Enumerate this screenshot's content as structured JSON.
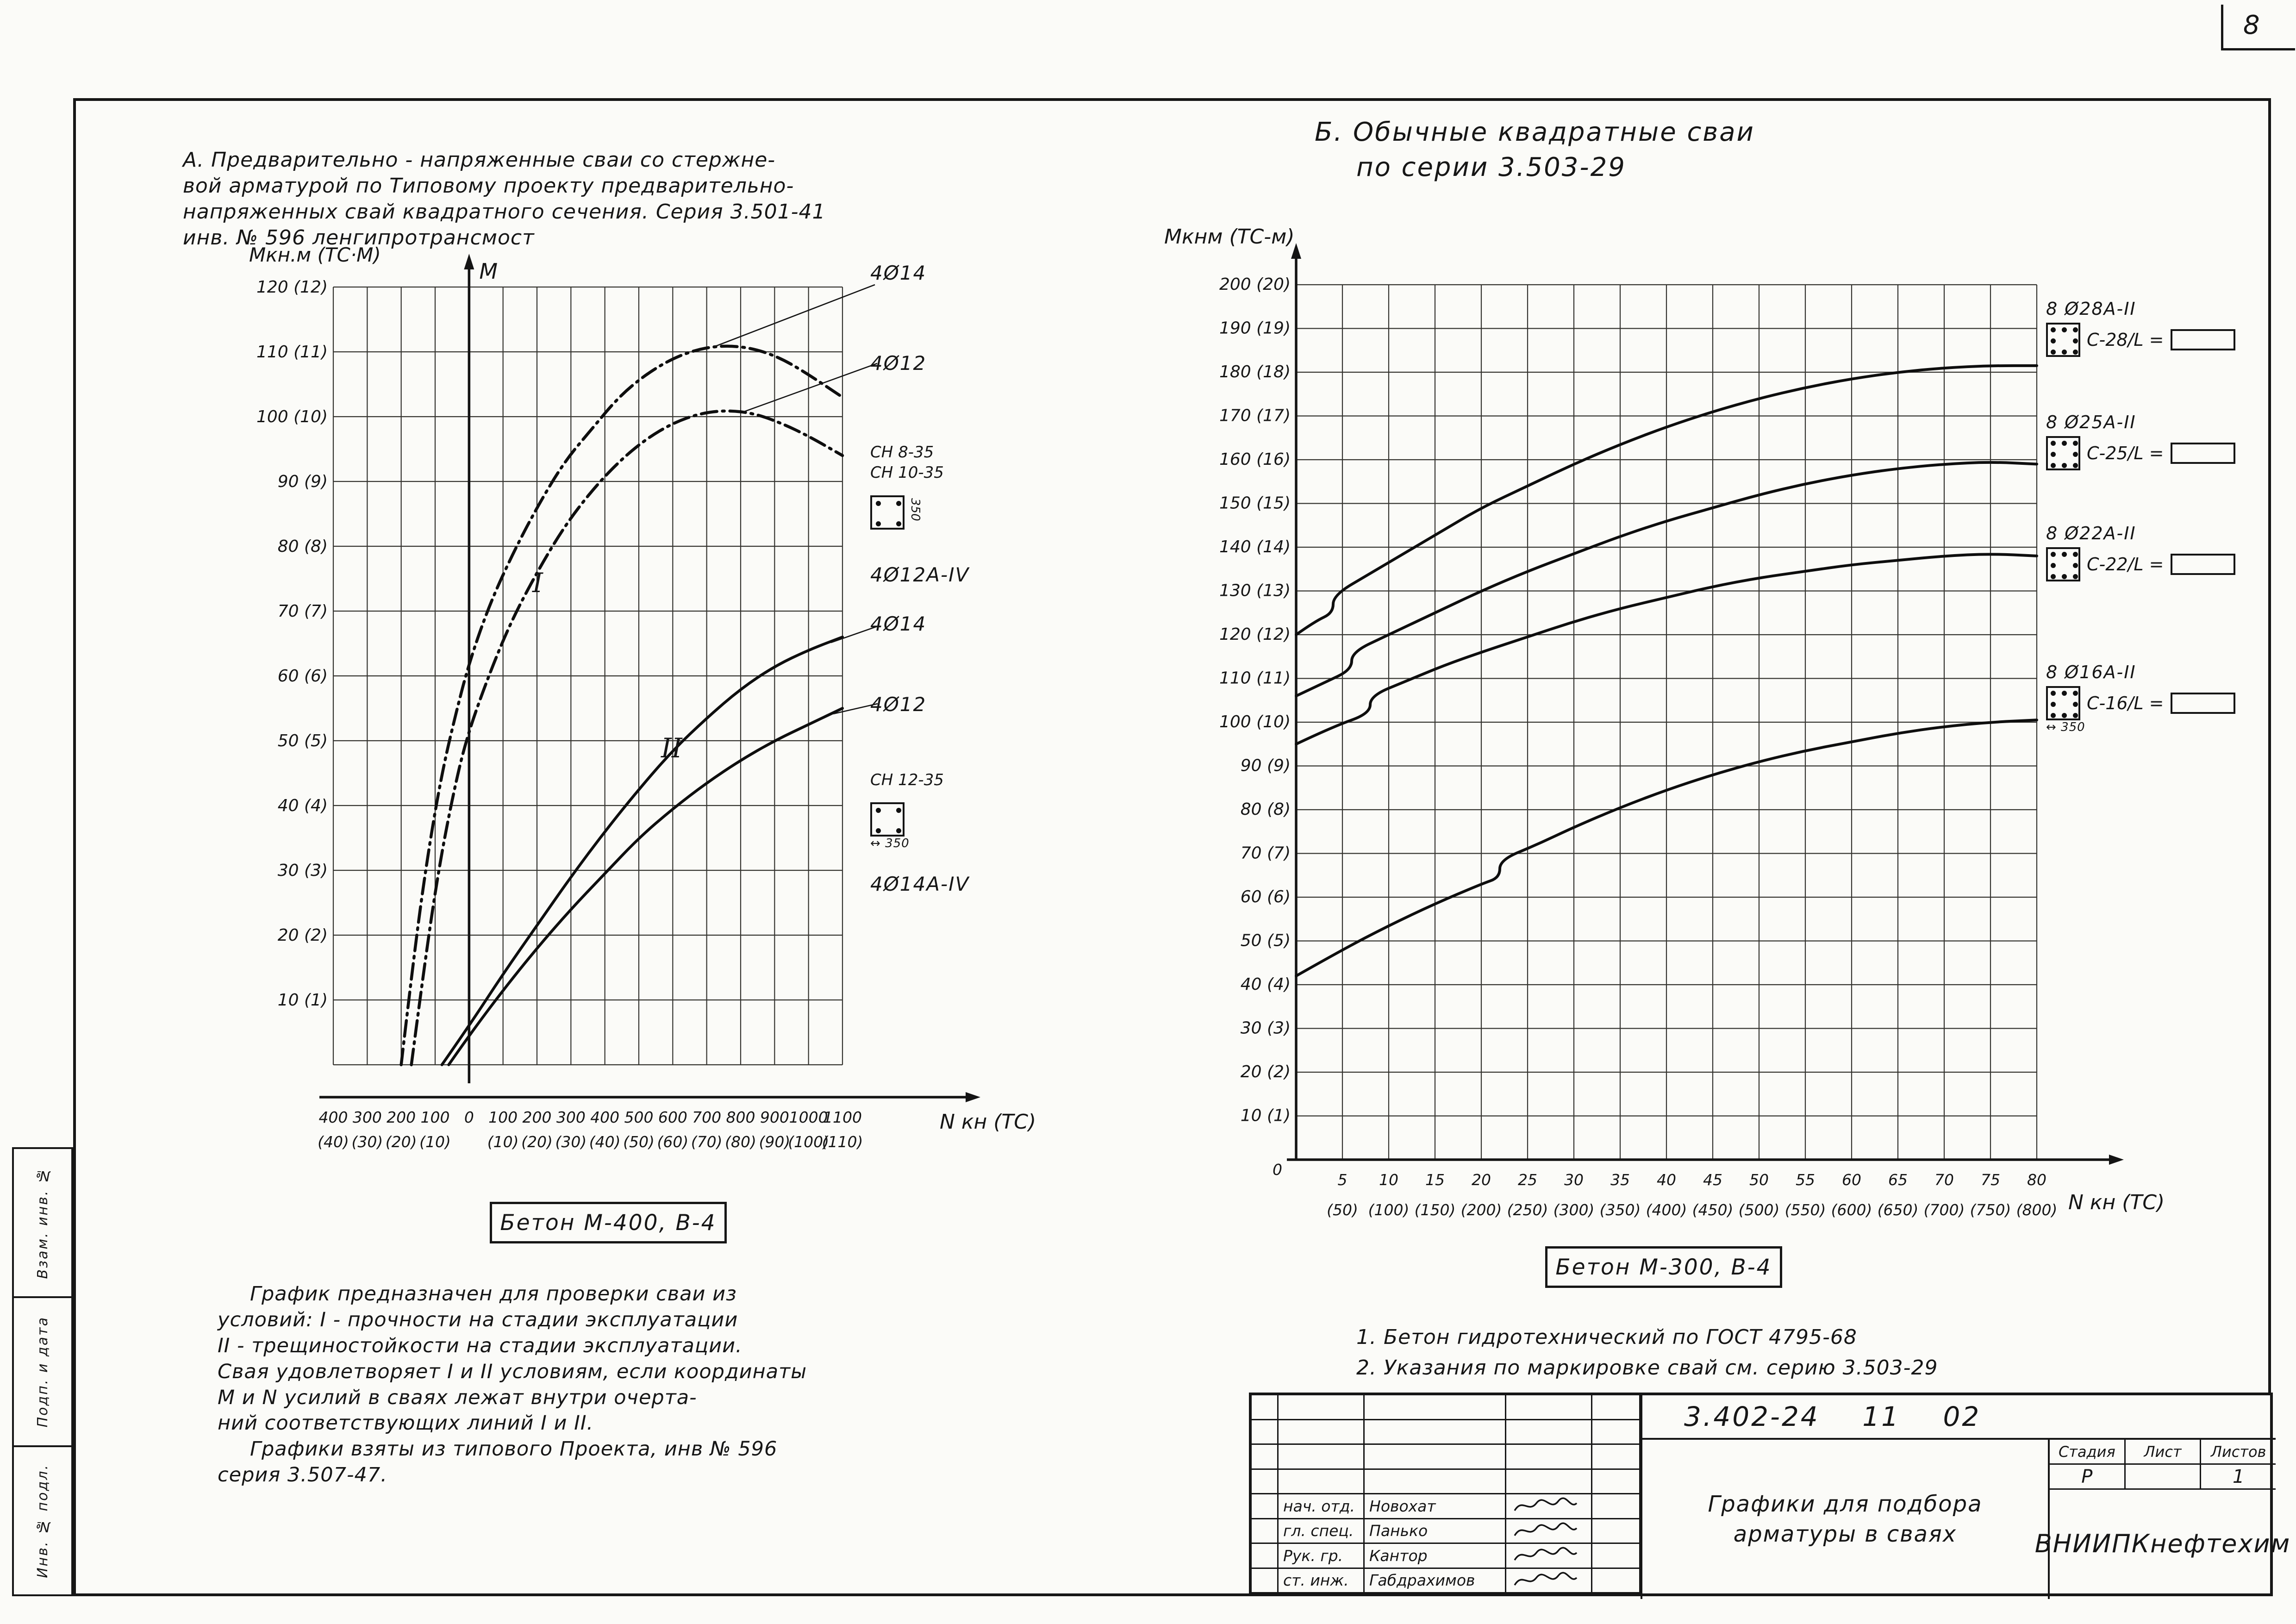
{
  "sheet": {
    "number": "8"
  },
  "margin_stamps": [
    "Взам. инв. №",
    "Подп. и дата",
    "Инв. № подл."
  ],
  "section_a": {
    "title_lines": [
      "А. Предварительно - напряженные сваи со стержне-",
      "вой арматурой по Типовому проекту предварительно-",
      "напряженных свай квадратного сечения. Серия 3.501-41",
      "инв. № 596  ленгипротрансмост"
    ],
    "axis": {
      "y": "Мкн.м (ТС·М)",
      "x": "N кн (ТС)",
      "moment": "М"
    },
    "curve_group_labels": {
      "i": "I",
      "ii": "II"
    },
    "annotations": {
      "top_strength": [
        "4Ø14",
        "4Ø12"
      ],
      "section_label_1": [
        "СН 8-35",
        "СН 10-35"
      ],
      "class_label_1": "4Ø12А-IV",
      "crack": [
        "4Ø14",
        "4Ø12"
      ],
      "section_label_2": "СН 12-35",
      "class_label_2": "4Ø14А-IV",
      "dim_1": "350",
      "dim_2": "350"
    },
    "concrete": "Бетон М-400, В-4",
    "notes": [
      "График  предназначен  для  проверки  сваи  из",
      "условий: I - прочности  на  стадии  эксплуатации",
      "II - трещиностойкости на стадии эксплуатации.",
      "Свая удовлетворяет I и II условиям, если координаты",
      "М и N усилий в сваях лежат внутри очерта-",
      "ний соответствующих линий I и II.",
      "Графики  взяты  из  типового  Проекта, инв № 596",
      "серия 3.507-47."
    ]
  },
  "section_b": {
    "title_lines": [
      "Б. Обычные квадратные сваи",
      "по серии 3.503-29"
    ],
    "axis": {
      "y": "Мкнм (ТС-м)",
      "x": "N кн (ТС)",
      "origin": "0"
    },
    "legend": [
      {
        "bars": "8 Ø28А-II",
        "mark": "С-28/L ="
      },
      {
        "bars": "8 Ø25А-II",
        "mark": "С-25/L ="
      },
      {
        "bars": "8 Ø22А-II",
        "mark": "С-22/L ="
      },
      {
        "bars": "8 Ø16А-II",
        "mark": "С-16/L =",
        "dim": "350"
      }
    ],
    "concrete": "Бетон М-300, В-4",
    "notes": [
      "1. Бетон  гидротехнический  по  ГОСТ 4795-68",
      "2. Указания  по  маркировке  свай  см.  серию 3.503-29"
    ]
  },
  "title_block": {
    "doc_number": "3.402-24 11 02",
    "title_lines": [
      "Графики для подбора",
      "арматуры в сваях"
    ],
    "organization": "ВНИИПКнефтехим",
    "stage_headers": [
      "Стадия",
      "Лист",
      "Листов"
    ],
    "stage_values": [
      "Р",
      "",
      "1"
    ],
    "people": [
      {
        "role": "нач. отд.",
        "name": "Новохат"
      },
      {
        "role": "гл. спец.",
        "name": "Панько"
      },
      {
        "role": "Рук. гр.",
        "name": "Кантор"
      },
      {
        "role": "ст. инж.",
        "name": "Габдрахимов"
      }
    ]
  },
  "chart_data": [
    {
      "type": "line",
      "title": "А. Предварительно-напряженные сваи квадратного сечения, Серия 3.501-41",
      "xlabel": "N кн (ТС)",
      "ylabel": "Мкн.м (ТС·М)",
      "xlim": [
        -400,
        1100
      ],
      "ylim": [
        0,
        120
      ],
      "grid": true,
      "x_tick_values": [
        -400,
        -300,
        -200,
        -100,
        0,
        100,
        200,
        300,
        400,
        500,
        600,
        700,
        800,
        900,
        1000,
        1100
      ],
      "x_tick_labels": [
        "400",
        "300",
        "200",
        "100",
        "0",
        "100",
        "200",
        "300",
        "400",
        "500",
        "600",
        "700",
        "800",
        "900",
        "1000",
        "1100"
      ],
      "x_tick_sublabels": [
        "(40)",
        "(30)",
        "(20)",
        "(10)",
        "",
        "(10)",
        "(20)",
        "(30)",
        "(40)",
        "(50)",
        "(60)",
        "(70)",
        "(80)",
        "(90)",
        "(100)",
        "(110)"
      ],
      "y_tick_values": [
        120,
        110,
        100,
        90,
        80,
        70,
        60,
        50,
        40,
        30,
        20,
        10
      ],
      "y_tick_labels": [
        "120 (12)",
        "110 (11)",
        "100 (10)",
        "90 (9)",
        "80 (8)",
        "70 (7)",
        "60 (6)",
        "50 (5)",
        "40 (4)",
        "30 (3)",
        "20 (2)",
        "10 (1)"
      ],
      "series": [
        {
          "name": "I — 4Ø14 (прочность)",
          "style": "dashdot",
          "points": [
            [
              -200,
              0
            ],
            [
              -160,
              18
            ],
            [
              -120,
              33
            ],
            [
              -80,
              45
            ],
            [
              -40,
              54
            ],
            [
              0,
              62
            ],
            [
              60,
              71
            ],
            [
              130,
              79
            ],
            [
              200,
              86
            ],
            [
              280,
              93
            ],
            [
              360,
              98
            ],
            [
              440,
              103
            ],
            [
              520,
              106.5
            ],
            [
              600,
              109
            ],
            [
              680,
              110.5
            ],
            [
              760,
              111
            ],
            [
              840,
              110.5
            ],
            [
              920,
              109
            ],
            [
              1000,
              106.5
            ],
            [
              1100,
              103
            ]
          ]
        },
        {
          "name": "I — 4Ø12 (прочность)",
          "style": "dashdot",
          "points": [
            [
              -170,
              0
            ],
            [
              -130,
              16
            ],
            [
              -90,
              30
            ],
            [
              -50,
              41
            ],
            [
              -10,
              50
            ],
            [
              50,
              59
            ],
            [
              120,
              68
            ],
            [
              200,
              76
            ],
            [
              280,
              83
            ],
            [
              360,
              88.5
            ],
            [
              440,
              93
            ],
            [
              520,
              96.5
            ],
            [
              600,
              99
            ],
            [
              680,
              100.5
            ],
            [
              760,
              101
            ],
            [
              840,
              100.5
            ],
            [
              920,
              99
            ],
            [
              1000,
              97
            ],
            [
              1100,
              94
            ]
          ]
        },
        {
          "name": "II — 4Ø14 (трещиностойкость)",
          "style": "solid",
          "points": [
            [
              -80,
              0
            ],
            [
              0,
              6
            ],
            [
              100,
              14
            ],
            [
              200,
              21.5
            ],
            [
              300,
              29
            ],
            [
              400,
              36
            ],
            [
              500,
              42.5
            ],
            [
              600,
              48.5
            ],
            [
              700,
              53.5
            ],
            [
              800,
              58
            ],
            [
              900,
              61.5
            ],
            [
              1000,
              64
            ],
            [
              1100,
              66
            ]
          ]
        },
        {
          "name": "II — 4Ø12 (трещиностойкость)",
          "style": "solid",
          "points": [
            [
              -60,
              0
            ],
            [
              0,
              4.5
            ],
            [
              100,
              11.5
            ],
            [
              200,
              18
            ],
            [
              300,
              24
            ],
            [
              400,
              29.5
            ],
            [
              500,
              35
            ],
            [
              600,
              39.5
            ],
            [
              700,
              43.5
            ],
            [
              800,
              47
            ],
            [
              900,
              50
            ],
            [
              1000,
              52.5
            ],
            [
              1100,
              55
            ]
          ]
        }
      ]
    },
    {
      "type": "line",
      "title": "Б. Обычные квадратные сваи по серии 3.503-29",
      "xlabel": "N кн (ТС)",
      "ylabel": "Мкнм (ТС-м)",
      "xlim": [
        0,
        80
      ],
      "ylim": [
        0,
        200
      ],
      "grid": true,
      "x_tick_values": [
        5,
        10,
        15,
        20,
        25,
        30,
        35,
        40,
        45,
        50,
        55,
        60,
        65,
        70,
        75,
        80
      ],
      "x_tick_labels": [
        "5",
        "10",
        "15",
        "20",
        "25",
        "30",
        "35",
        "40",
        "45",
        "50",
        "55",
        "60",
        "65",
        "70",
        "75",
        "80"
      ],
      "x_tick_sublabels": [
        "(50)",
        "(100)",
        "(150)",
        "(200)",
        "(250)",
        "(300)",
        "(350)",
        "(400)",
        "(450)",
        "(500)",
        "(550)",
        "(600)",
        "(650)",
        "(700)",
        "(750)",
        "(800)"
      ],
      "y_tick_values": [
        200,
        190,
        180,
        170,
        160,
        150,
        140,
        130,
        120,
        110,
        100,
        90,
        80,
        70,
        60,
        50,
        40,
        30,
        20,
        10
      ],
      "y_tick_labels": [
        "200 (20)",
        "190 (19)",
        "180 (18)",
        "170 (17)",
        "160 (16)",
        "150 (15)",
        "140 (14)",
        "130 (13)",
        "120 (12)",
        "110 (11)",
        "100 (10)",
        "90 (9)",
        "80 (8)",
        "70 (7)",
        "60 (6)",
        "50 (5)",
        "40 (4)",
        "30 (3)",
        "20 (2)",
        "10 (1)"
      ],
      "series": [
        {
          "name": "С-28/L — 8Ø28А-II",
          "style": "solid",
          "points": [
            [
              0,
              120
            ],
            [
              2,
              123
            ],
            [
              4,
              125
            ],
            [
              4,
              129
            ],
            [
              8,
              134
            ],
            [
              12,
              139
            ],
            [
              16,
              144
            ],
            [
              20,
              149
            ],
            [
              25,
              154
            ],
            [
              30,
              159
            ],
            [
              35,
              163.5
            ],
            [
              40,
              167.5
            ],
            [
              45,
              171
            ],
            [
              50,
              174
            ],
            [
              55,
              176.5
            ],
            [
              60,
              178.5
            ],
            [
              65,
              180
            ],
            [
              70,
              181
            ],
            [
              75,
              181.5
            ],
            [
              80,
              181.5
            ]
          ]
        },
        {
          "name": "С-25/L — 8Ø25А-II",
          "style": "solid",
          "points": [
            [
              0,
              106
            ],
            [
              3,
              109
            ],
            [
              6,
              112
            ],
            [
              6,
              116
            ],
            [
              10,
              120
            ],
            [
              15,
              125
            ],
            [
              20,
              130
            ],
            [
              25,
              134.5
            ],
            [
              30,
              138.5
            ],
            [
              35,
              142.5
            ],
            [
              40,
              146
            ],
            [
              45,
              149
            ],
            [
              50,
              152
            ],
            [
              55,
              154.5
            ],
            [
              60,
              156.5
            ],
            [
              65,
              158
            ],
            [
              70,
              159
            ],
            [
              75,
              159.5
            ],
            [
              80,
              159
            ]
          ]
        },
        {
          "name": "С-22/L — 8Ø22А-II",
          "style": "solid",
          "points": [
            [
              0,
              95
            ],
            [
              4,
              99
            ],
            [
              8,
              102
            ],
            [
              8,
              106
            ],
            [
              12,
              109.5
            ],
            [
              16,
              113
            ],
            [
              20,
              116
            ],
            [
              25,
              119.5
            ],
            [
              30,
              123
            ],
            [
              35,
              126
            ],
            [
              40,
              128.5
            ],
            [
              45,
              131
            ],
            [
              50,
              133
            ],
            [
              55,
              134.5
            ],
            [
              60,
              136
            ],
            [
              65,
              137
            ],
            [
              70,
              138
            ],
            [
              75,
              138.5
            ],
            [
              80,
              138
            ]
          ]
        },
        {
          "name": "С-16/L — 8Ø16А-II",
          "style": "solid",
          "points": [
            [
              0,
              42
            ],
            [
              5,
              48
            ],
            [
              10,
              53.5
            ],
            [
              15,
              58.5
            ],
            [
              20,
              63
            ],
            [
              22,
              64.5
            ],
            [
              22,
              68.5
            ],
            [
              26,
              72
            ],
            [
              30,
              76
            ],
            [
              35,
              80.5
            ],
            [
              40,
              84.5
            ],
            [
              45,
              88
            ],
            [
              50,
              91
            ],
            [
              55,
              93.5
            ],
            [
              60,
              95.5
            ],
            [
              65,
              97.5
            ],
            [
              70,
              99
            ],
            [
              75,
              100
            ],
            [
              80,
              100.5
            ]
          ]
        }
      ]
    }
  ]
}
